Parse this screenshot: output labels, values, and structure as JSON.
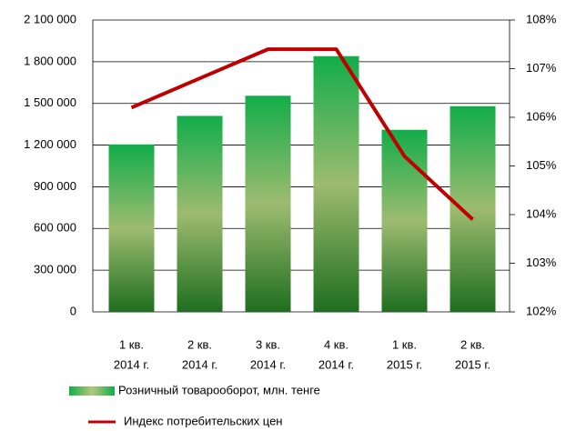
{
  "chart_data": {
    "type": "bar_line",
    "categories": [
      [
        "1 кв.",
        "2014 г."
      ],
      [
        "2 кв.",
        "2014 г."
      ],
      [
        "3 кв.",
        "2014 г."
      ],
      [
        "4 кв.",
        "2014 г."
      ],
      [
        "1 кв.",
        "2015 г."
      ],
      [
        "2 кв.",
        "2015 г."
      ]
    ],
    "series": [
      {
        "name": "Розничный товарооборот, млн. тенге",
        "type": "bar",
        "color": "#3aa84e",
        "values": [
          1205000,
          1410000,
          1555000,
          1840000,
          1310000,
          1480000
        ]
      },
      {
        "name": "Индекс потребительских цен",
        "type": "line",
        "axis": "y2",
        "color": "#c00000",
        "values": [
          106.2,
          106.8,
          107.4,
          107.4,
          105.2,
          103.9
        ]
      }
    ],
    "ylim": [
      0,
      2100000
    ],
    "yticks": [
      0,
      {
        "value": 300000,
        "label": "300 000"
      },
      {
        "value": 600000,
        "label": "600 000"
      },
      {
        "value": 900000,
        "label": "900 000"
      },
      {
        "value": 1200000,
        "label": "1 200 000"
      },
      {
        "value": 1500000,
        "label": "1 500 000"
      },
      {
        "value": 1800000,
        "label": "1 800 000"
      },
      {
        "value": 2100000,
        "label": "2 100 000"
      }
    ],
    "y2lim": [
      102,
      108
    ],
    "y2ticks": [
      {
        "value": 102,
        "label": "102%"
      },
      {
        "value": 103,
        "label": "103%"
      },
      {
        "value": 104,
        "label": "104%"
      },
      {
        "value": 105,
        "label": "105%"
      },
      {
        "value": 106,
        "label": "106%"
      },
      {
        "value": 107,
        "label": "107%"
      },
      {
        "value": 108,
        "label": "108%"
      }
    ],
    "grid": true,
    "legend": "bottom"
  }
}
